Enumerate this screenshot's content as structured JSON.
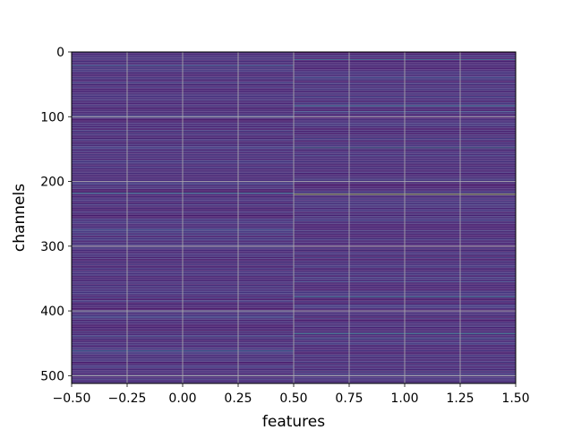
{
  "chart_data": {
    "type": "heatmap",
    "title": "",
    "xlabel": "features",
    "ylabel": "channels",
    "xlim": [
      -0.5,
      1.5
    ],
    "ylim": [
      512,
      0
    ],
    "y_inverted": true,
    "columns": [
      0,
      1
    ],
    "rows": 512,
    "colormap": "viridis",
    "value_range": [
      0,
      1
    ],
    "background_level": 0.08,
    "grid": true,
    "x_ticks": [
      -0.5,
      -0.25,
      0.0,
      0.25,
      0.5,
      0.75,
      1.0,
      1.25,
      1.5
    ],
    "x_tick_labels": [
      "−0.50",
      "−0.25",
      "0.00",
      "0.25",
      "0.50",
      "0.75",
      "1.00",
      "1.25",
      "1.50"
    ],
    "y_ticks": [
      0,
      100,
      200,
      300,
      400,
      500
    ],
    "y_tick_labels": [
      "0",
      "100",
      "200",
      "300",
      "400",
      "500"
    ],
    "highlight_rows": [
      {
        "column": 0,
        "row": 22,
        "value": 0.4
      },
      {
        "column": 0,
        "row": 48,
        "value": 0.3
      },
      {
        "column": 0,
        "row": 218,
        "value": 0.5
      },
      {
        "column": 0,
        "row": 275,
        "value": 0.35
      },
      {
        "column": 0,
        "row": 410,
        "value": 0.3
      },
      {
        "column": 0,
        "row": 440,
        "value": 0.3
      },
      {
        "column": 0,
        "row": 462,
        "value": 0.45
      },
      {
        "column": 0,
        "row": 500,
        "value": 0.3
      },
      {
        "column": 1,
        "row": 12,
        "value": 0.45
      },
      {
        "column": 1,
        "row": 40,
        "value": 0.3
      },
      {
        "column": 1,
        "row": 83,
        "value": 0.5
      },
      {
        "column": 1,
        "row": 92,
        "value": 0.35
      },
      {
        "column": 1,
        "row": 148,
        "value": 0.55
      },
      {
        "column": 1,
        "row": 220,
        "value": 0.9
      },
      {
        "column": 1,
        "row": 300,
        "value": 0.3
      },
      {
        "column": 1,
        "row": 318,
        "value": 0.3
      },
      {
        "column": 1,
        "row": 355,
        "value": 0.3
      },
      {
        "column": 1,
        "row": 378,
        "value": 0.5
      },
      {
        "column": 1,
        "row": 435,
        "value": 0.55
      },
      {
        "column": 1,
        "row": 443,
        "value": 0.35
      },
      {
        "column": 1,
        "row": 493,
        "value": 0.3
      }
    ]
  }
}
